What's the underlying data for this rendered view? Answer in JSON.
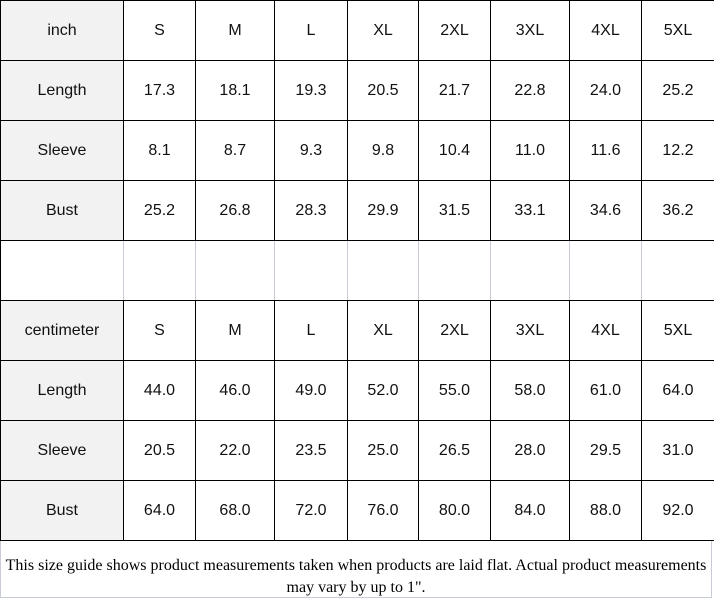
{
  "inch": {
    "header": [
      "inch",
      "S",
      "M",
      "L",
      "XL",
      "2XL",
      "3XL",
      "4XL",
      "5XL"
    ],
    "rows": [
      [
        "Length",
        "17.3",
        "18.1",
        "19.3",
        "20.5",
        "21.7",
        "22.8",
        "24.0",
        "25.2"
      ],
      [
        "Sleeve",
        "8.1",
        "8.7",
        "9.3",
        "9.8",
        "10.4",
        "11.0",
        "11.6",
        "12.2"
      ],
      [
        "Bust",
        "25.2",
        "26.8",
        "28.3",
        "29.9",
        "31.5",
        "33.1",
        "34.6",
        "36.2"
      ]
    ]
  },
  "centimeter": {
    "header": [
      "centimeter",
      "S",
      "M",
      "L",
      "XL",
      "2XL",
      "3XL",
      "4XL",
      "5XL"
    ],
    "rows": [
      [
        "Length",
        "44.0",
        "46.0",
        "49.0",
        "52.0",
        "55.0",
        "58.0",
        "61.0",
        "64.0"
      ],
      [
        "Sleeve",
        "20.5",
        "22.0",
        "23.5",
        "25.0",
        "26.5",
        "28.0",
        "29.5",
        "31.0"
      ],
      [
        "Bust",
        "64.0",
        "68.0",
        "72.0",
        "76.0",
        "80.0",
        "84.0",
        "88.0",
        "92.0"
      ]
    ]
  },
  "footnote": "This size guide shows product measurements taken when products are laid flat. Actual product measurements may vary by up to 1\"."
}
